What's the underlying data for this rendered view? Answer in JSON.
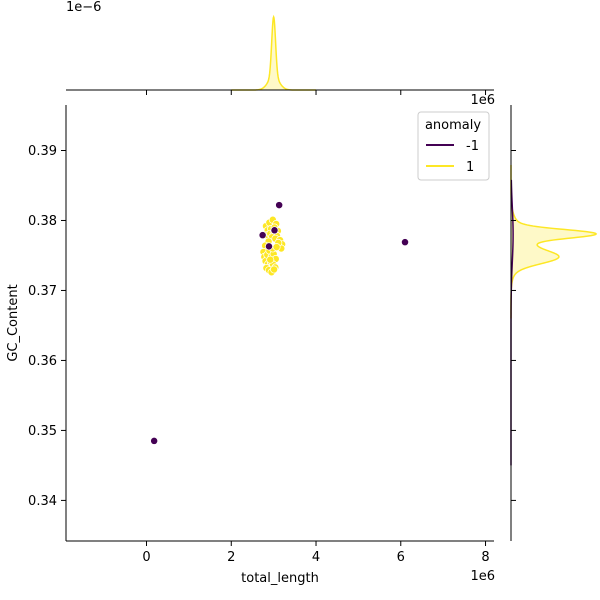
{
  "chart_data": {
    "type": "scatter",
    "subtype": "jointplot-with-marginal-kde",
    "xlabel": "total_length",
    "ylabel": "GC_Content",
    "x_offset_text": "1e6",
    "y_offset_text": "",
    "top_kde_offset_text": "1e−6",
    "right_kde_offset_text": "1e6",
    "xlim": [
      -1900000,
      8200000
    ],
    "ylim": [
      0.3342,
      0.3965
    ],
    "x_ticks": [
      0,
      2000000,
      4000000,
      6000000,
      8000000
    ],
    "x_tick_labels": [
      "0",
      "2",
      "4",
      "6",
      "8"
    ],
    "y_ticks": [
      0.34,
      0.35,
      0.36,
      0.37,
      0.38,
      0.39
    ],
    "y_tick_labels": [
      "0.34",
      "0.35",
      "0.36",
      "0.37",
      "0.38",
      "0.39"
    ],
    "grid": false,
    "legend": {
      "title": "anomaly",
      "placement": "top-right",
      "entries": [
        {
          "label": "-1",
          "color": "#440154"
        },
        {
          "label": "1",
          "color": "#fde725"
        }
      ]
    },
    "series": [
      {
        "name": "-1",
        "color": "#440154",
        "points": [
          {
            "x": 180000,
            "y": 0.3485
          },
          {
            "x": 3130000,
            "y": 0.3822
          },
          {
            "x": 6100000,
            "y": 0.3769
          },
          {
            "x": 2740000,
            "y": 0.3779
          },
          {
            "x": 2890000,
            "y": 0.3763
          },
          {
            "x": 3020000,
            "y": 0.3786
          }
        ]
      },
      {
        "name": "1",
        "color": "#fde725",
        "points": [
          {
            "x": 2820000,
            "y": 0.3792
          },
          {
            "x": 2900000,
            "y": 0.3797
          },
          {
            "x": 2980000,
            "y": 0.3801
          },
          {
            "x": 3060000,
            "y": 0.3795
          },
          {
            "x": 2860000,
            "y": 0.3786
          },
          {
            "x": 2940000,
            "y": 0.3788
          },
          {
            "x": 3020000,
            "y": 0.379
          },
          {
            "x": 3100000,
            "y": 0.3785
          },
          {
            "x": 2840000,
            "y": 0.3779
          },
          {
            "x": 2920000,
            "y": 0.3781
          },
          {
            "x": 3000000,
            "y": 0.3783
          },
          {
            "x": 3080000,
            "y": 0.3778
          },
          {
            "x": 2960000,
            "y": 0.3776
          },
          {
            "x": 3040000,
            "y": 0.3774
          },
          {
            "x": 3150000,
            "y": 0.3772
          },
          {
            "x": 3200000,
            "y": 0.3766
          },
          {
            "x": 3180000,
            "y": 0.376
          },
          {
            "x": 3110000,
            "y": 0.3768
          },
          {
            "x": 2880000,
            "y": 0.377
          },
          {
            "x": 2800000,
            "y": 0.3764
          },
          {
            "x": 2760000,
            "y": 0.3755
          },
          {
            "x": 2780000,
            "y": 0.3748
          },
          {
            "x": 2810000,
            "y": 0.3742
          },
          {
            "x": 2850000,
            "y": 0.3751
          },
          {
            "x": 2900000,
            "y": 0.3757
          },
          {
            "x": 2950000,
            "y": 0.3748
          },
          {
            "x": 3000000,
            "y": 0.3752
          },
          {
            "x": 3050000,
            "y": 0.3745
          },
          {
            "x": 2870000,
            "y": 0.3738
          },
          {
            "x": 2930000,
            "y": 0.3741
          },
          {
            "x": 2990000,
            "y": 0.3737
          },
          {
            "x": 3040000,
            "y": 0.3733
          },
          {
            "x": 2830000,
            "y": 0.3732
          },
          {
            "x": 2890000,
            "y": 0.3729
          },
          {
            "x": 2950000,
            "y": 0.3726
          },
          {
            "x": 3010000,
            "y": 0.373
          },
          {
            "x": 2980000,
            "y": 0.376
          },
          {
            "x": 2920000,
            "y": 0.3744
          },
          {
            "x": 3070000,
            "y": 0.3762
          }
        ]
      }
    ],
    "marginal_top": {
      "type": "kde",
      "series": [
        {
          "name": "1",
          "color": "#fde725",
          "peak_x": 3000000,
          "ymax": 1
        }
      ]
    },
    "marginal_right": {
      "type": "kde",
      "series": [
        {
          "name": "1",
          "color": "#fde725",
          "peaks_y": [
            0.3781,
            0.3747
          ]
        }
      ]
    }
  }
}
